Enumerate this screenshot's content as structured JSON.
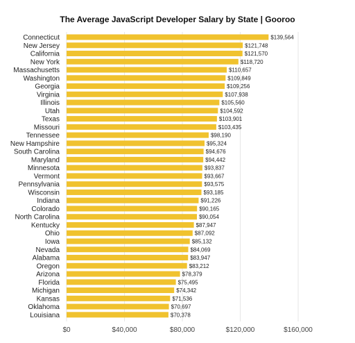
{
  "chart_data": {
    "type": "bar",
    "orientation": "horizontal",
    "title": "The Average JavaScript Developer Salary by State | Gooroo",
    "xlabel": "",
    "ylabel": "",
    "xlim": [
      0,
      160000
    ],
    "grid": true,
    "bar_color": "#f0c22e",
    "x_ticks": [
      "$0",
      "$40,000",
      "$80,000",
      "$120,000",
      "$160,000"
    ],
    "x_tick_values": [
      0,
      40000,
      80000,
      120000,
      160000
    ],
    "categories": [
      "Connecticut",
      "New Jersey",
      "California",
      "New York",
      "Massachusetts",
      "Washington",
      "Georgia",
      "Virginia",
      "Illinois",
      "Utah",
      "Texas",
      "Missouri",
      "Tennessee",
      "New Hampshire",
      "South Carolina",
      "Maryland",
      "Minnesota",
      "Vermont",
      "Pennsylvania",
      "Wisconsin",
      "Indiana",
      "Colorado",
      "North Carolina",
      "Kentucky",
      "Ohio",
      "Iowa",
      "Nevada",
      "Alabama",
      "Oregon",
      "Arizona",
      "Florida",
      "Michigan",
      "Kansas",
      "Oklahoma",
      "Louisiana"
    ],
    "values": [
      139564,
      121748,
      121570,
      118720,
      110657,
      109849,
      109256,
      107938,
      105560,
      104592,
      103901,
      103435,
      98190,
      95324,
      94676,
      94442,
      93837,
      93667,
      93575,
      93185,
      91226,
      90165,
      90054,
      87947,
      87092,
      85132,
      84069,
      83947,
      83212,
      78379,
      75495,
      74342,
      71536,
      70697,
      70378
    ],
    "value_labels": [
      "$139,564",
      "$121,748",
      "$121,570",
      "$118,720",
      "$110,657",
      "$109,849",
      "$109,256",
      "$107,938",
      "$105,560",
      "$104,592",
      "$103,901",
      "$103,435",
      "$98,190",
      "$95,324",
      "$94,676",
      "$94,442",
      "$93,837",
      "$93,667",
      "$93,575",
      "$93,185",
      "$91,226",
      "$90,165",
      "$90,054",
      "$87,947",
      "$87,092",
      "$85,132",
      "$84,069",
      "$83,947",
      "$83,212",
      "$78,379",
      "$75,495",
      "$74,342",
      "$71,536",
      "$70,697",
      "$70,378"
    ]
  }
}
